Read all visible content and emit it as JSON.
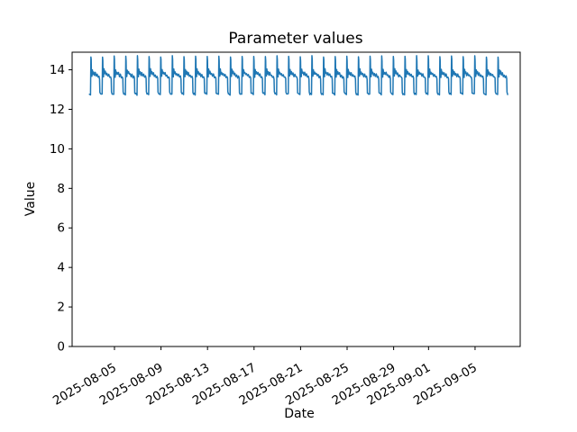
{
  "chart_data": {
    "type": "line",
    "title": "Parameter values",
    "xlabel": "Date",
    "ylabel": "Value",
    "line_color": "#1f77b4",
    "line_width": 1.5,
    "axes_edge_color": "#000000",
    "background_color": "#ffffff",
    "grid": false,
    "legend": "none",
    "ylim": [
      0,
      14.89
    ],
    "yticks": [
      0,
      2,
      4,
      6,
      8,
      10,
      12,
      14
    ],
    "x_tick_labels": [
      "2025-08-05",
      "2025-08-09",
      "2025-08-13",
      "2025-08-17",
      "2025-08-21",
      "2025-08-25",
      "2025-08-29",
      "2025-09-01",
      "2025-09-05"
    ],
    "x_tick_day_offsets": [
      0,
      4,
      8,
      12,
      16,
      20,
      24,
      27,
      31
    ],
    "x_tick_rotation_deg": 30,
    "xlim_day_offsets": [
      -3.64,
      34.88
    ],
    "series_name": "Parameter values",
    "series_start_day_offset": -2.15,
    "num_cycles": 36,
    "last_cycle_end_fraction": 0.95,
    "period_days": 1,
    "value_low": 12.75,
    "value_peak": 14.68,
    "noise_amplitude": 0.04,
    "daily_profile": [
      [
        0.0,
        12.8
      ],
      [
        0.09,
        12.75
      ],
      [
        0.125,
        14.68
      ],
      [
        0.15,
        14.5
      ],
      [
        0.17,
        13.7
      ],
      [
        0.21,
        13.65
      ],
      [
        0.25,
        14.02
      ],
      [
        0.3,
        13.8
      ],
      [
        0.36,
        13.9
      ],
      [
        0.43,
        13.74
      ],
      [
        0.5,
        13.84
      ],
      [
        0.58,
        13.68
      ],
      [
        0.66,
        13.76
      ],
      [
        0.74,
        13.62
      ],
      [
        0.82,
        13.66
      ],
      [
        0.87,
        13.55
      ],
      [
        0.895,
        12.85
      ],
      [
        0.95,
        12.78
      ]
    ]
  }
}
